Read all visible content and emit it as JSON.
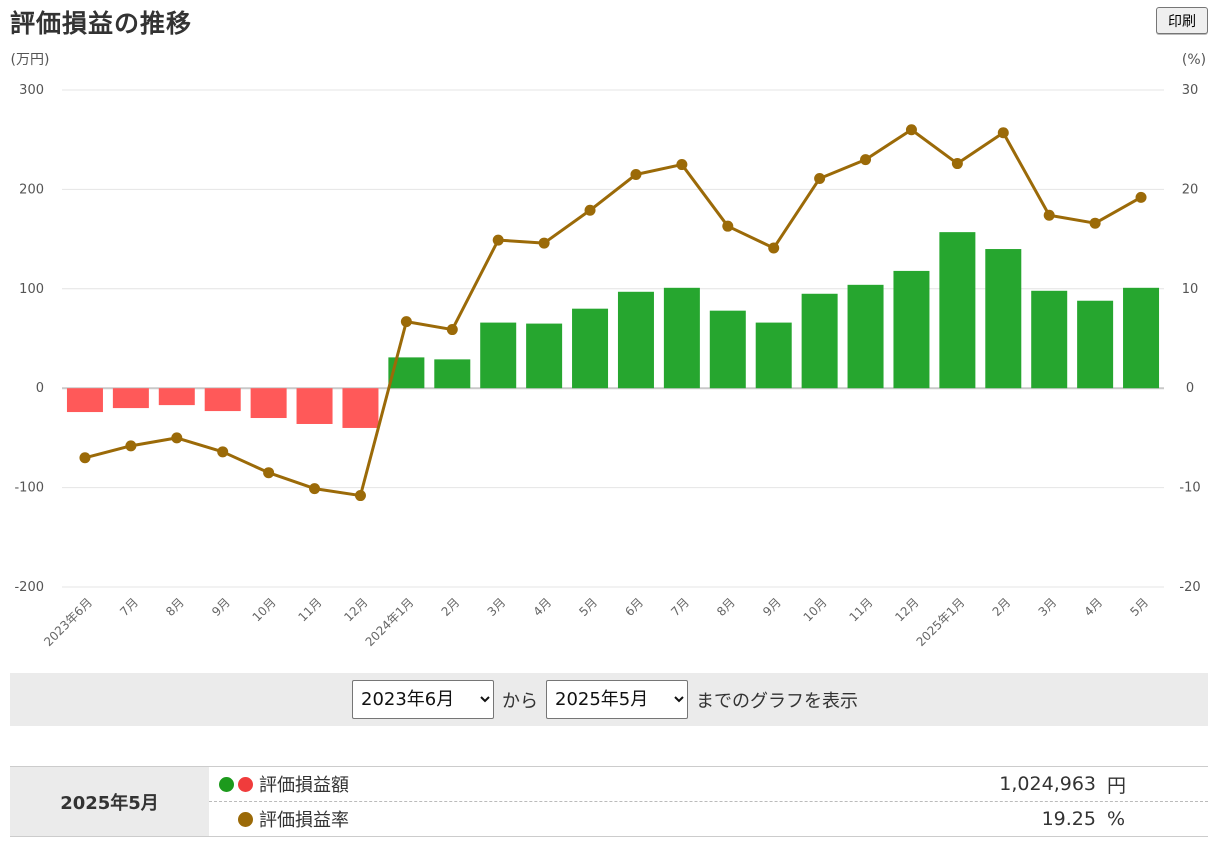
{
  "header": {
    "title": "評価損益の推移",
    "print_label": "印刷"
  },
  "chart_data": {
    "type": "bar",
    "title": "評価損益の推移",
    "categories": [
      "2023年6月",
      "7月",
      "8月",
      "9月",
      "10月",
      "11月",
      "12月",
      "2024年1月",
      "2月",
      "3月",
      "4月",
      "5月",
      "6月",
      "7月",
      "8月",
      "9月",
      "10月",
      "11月",
      "12月",
      "2025年1月",
      "2月",
      "3月",
      "4月",
      "5月"
    ],
    "series": [
      {
        "name": "評価損益額",
        "type": "bar",
        "axis": "left",
        "values": [
          -24,
          -20,
          -17,
          -23,
          -30,
          -36,
          -40,
          31,
          29,
          66,
          65,
          80,
          97,
          101,
          78,
          66,
          95,
          104,
          118,
          157,
          140,
          98,
          88,
          101
        ]
      },
      {
        "name": "評価損益率",
        "type": "line",
        "axis": "right",
        "values": [
          -7.0,
          -5.8,
          -5.0,
          -6.4,
          -8.5,
          -10.1,
          -10.8,
          6.7,
          5.9,
          14.9,
          14.6,
          17.9,
          21.5,
          22.5,
          16.3,
          14.1,
          21.1,
          23.0,
          26.0,
          22.6,
          25.7,
          17.4,
          16.6,
          19.2
        ]
      }
    ],
    "y_left": {
      "unit_label": "(万円)",
      "range": [
        -200,
        300
      ],
      "ticks": [
        "300",
        "200",
        "100",
        "0",
        "-100",
        "-200"
      ]
    },
    "y_right": {
      "unit_label": "(%)",
      "range": [
        -20,
        30
      ],
      "ticks": [
        "30",
        "20",
        "10",
        "0",
        "-10",
        "-20"
      ]
    },
    "grid": true,
    "colors": {
      "positive_bar": "#26a62f",
      "negative_bar": "#ff5959",
      "line": "#9b6a08"
    }
  },
  "range_selector": {
    "from_value": "2023年6月",
    "from_sep": "から",
    "to_value": "2025年5月",
    "suffix": "までのグラフを表示"
  },
  "summary": {
    "date": "2025年5月",
    "rows": [
      {
        "label": "評価損益額",
        "value": "1,024,963",
        "unit": "円"
      },
      {
        "label": "評価損益率",
        "value": "19.25",
        "unit": "%"
      }
    ],
    "dot_colors": {
      "positive": "#1d9a1d",
      "negative": "#f03c3c",
      "rate": "#9b6a08"
    }
  }
}
